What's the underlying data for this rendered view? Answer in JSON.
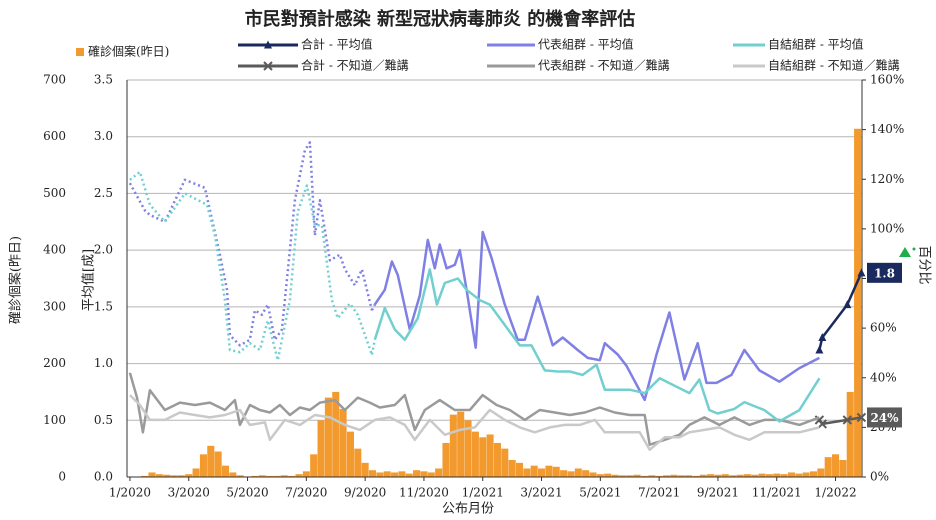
{
  "chart_data": {
    "type": "combo",
    "title": "市民對預計感染 新型冠狀病毒肺炎 的機會率評估",
    "x_label": "公布月份",
    "y_label": "平均值[成]",
    "y0_label": "確診個案(昨日)",
    "y2_label": "百分比",
    "xlim": [
      -0.1,
      24.9
    ],
    "xticks": [
      {
        "value": 0,
        "label": "1/2020"
      },
      {
        "value": 2,
        "label": "3/2020"
      },
      {
        "value": 4,
        "label": "5/2020"
      },
      {
        "value": 6,
        "label": "7/2020"
      },
      {
        "value": 8,
        "label": "9/2020"
      },
      {
        "value": 10,
        "label": "11/2020"
      },
      {
        "value": 12,
        "label": "1/2021"
      },
      {
        "value": 14,
        "label": "3/2021"
      },
      {
        "value": 16,
        "label": "5/2021"
      },
      {
        "value": 18,
        "label": "7/2021"
      },
      {
        "value": 20,
        "label": "9/2021"
      },
      {
        "value": 22,
        "label": "11/2021"
      },
      {
        "value": 24,
        "label": "1/2022"
      }
    ],
    "ylim": [
      0,
      3.5
    ],
    "yticks": [
      {
        "value": 0,
        "label": "0.0"
      },
      0.5,
      {
        "value": 1,
        "label": "1.0"
      },
      1.5,
      {
        "value": 2,
        "label": "2.0"
      },
      2.5,
      {
        "value": 3,
        "label": "3.0"
      },
      3.5
    ],
    "y0lim": [
      0,
      700
    ],
    "y0ticks": [
      0,
      100,
      200,
      300,
      400,
      500,
      600,
      700
    ],
    "y2lim": [
      0,
      160
    ],
    "y2ticks": [
      {
        "value": 0,
        "label": "0%"
      },
      {
        "value": 20,
        "label": "20%"
      },
      {
        "value": 40,
        "label": "40%"
      },
      {
        "value": 60,
        "label": "60%"
      },
      {
        "value": 80,
        "label": "80%"
      },
      {
        "value": 100,
        "label": "100%"
      },
      {
        "value": 120,
        "label": "120%"
      },
      {
        "value": 140,
        "label": "140%"
      },
      {
        "value": 160,
        "label": "160%"
      }
    ],
    "grid": true,
    "series": [
      {
        "name": "確診個案(昨日)",
        "type": "bar",
        "axis": "y0",
        "color": "#f39a2f",
        "x": [
          0,
          0.25,
          0.5,
          0.75,
          1,
          1.25,
          1.5,
          1.75,
          2,
          2.25,
          2.5,
          2.75,
          3,
          3.25,
          3.5,
          3.75,
          4,
          4.25,
          4.5,
          4.75,
          5,
          5.25,
          5.5,
          5.75,
          6,
          6.25,
          6.5,
          6.75,
          7,
          7.25,
          7.5,
          7.75,
          8,
          8.25,
          8.5,
          8.75,
          9,
          9.25,
          9.5,
          9.75,
          10,
          10.25,
          10.5,
          10.75,
          11,
          11.25,
          11.5,
          11.75,
          12,
          12.25,
          12.5,
          12.75,
          13,
          13.25,
          13.5,
          13.75,
          14,
          14.25,
          14.5,
          14.75,
          15,
          15.25,
          15.5,
          15.75,
          16,
          16.25,
          16.5,
          16.75,
          17,
          17.25,
          17.5,
          17.75,
          18,
          18.25,
          18.5,
          18.75,
          19,
          19.25,
          19.5,
          19.75,
          20,
          20.25,
          20.5,
          20.75,
          21,
          21.25,
          21.5,
          21.75,
          22,
          22.25,
          22.5,
          22.75,
          23,
          23.25,
          23.5,
          23.75,
          24,
          24.25,
          24.5,
          24.75
        ],
        "values": [
          0,
          0,
          2,
          8,
          5,
          4,
          3,
          3,
          5,
          15,
          40,
          55,
          45,
          20,
          8,
          3,
          1,
          2,
          3,
          2,
          2,
          3,
          2,
          5,
          10,
          40,
          100,
          140,
          150,
          120,
          80,
          50,
          25,
          12,
          8,
          10,
          8,
          10,
          6,
          12,
          10,
          8,
          15,
          60,
          110,
          115,
          100,
          80,
          70,
          75,
          60,
          50,
          30,
          25,
          15,
          20,
          15,
          20,
          18,
          12,
          10,
          15,
          12,
          8,
          5,
          6,
          4,
          3,
          3,
          4,
          2,
          3,
          2,
          3,
          4,
          3,
          3,
          2,
          4,
          5,
          4,
          5,
          3,
          4,
          5,
          4,
          6,
          5,
          6,
          5,
          8,
          6,
          8,
          10,
          15,
          35,
          40,
          30,
          150,
          614
        ]
      },
      {
        "name": "合計 - 平均值",
        "type": "line",
        "axis": "y",
        "color": "#1b2a5e",
        "marker": "triangle",
        "x": [
          23.45,
          23.55,
          24.4,
          24.88
        ],
        "values": [
          1.12,
          1.23,
          1.52,
          1.8
        ],
        "value_labels": [
          null,
          null,
          null,
          "1.8"
        ]
      },
      {
        "name": "代表組群 - 平均值",
        "type": "line",
        "axis": "y",
        "color": "#7f7fe6",
        "dashed_before": 8.3,
        "x": [
          0,
          0.51,
          0.68,
          1.19,
          1.87,
          2.55,
          3.06,
          3.3,
          3.4,
          3.74,
          4.08,
          4.25,
          4.49,
          4.69,
          4.93,
          5.17,
          5.61,
          5.95,
          6.12,
          6.29,
          6.46,
          6.8,
          7.14,
          7.31,
          7.65,
          7.89,
          8.23,
          8.33,
          8.67,
          8.91,
          9.11,
          9.52,
          9.86,
          10.13,
          10.37,
          10.54,
          10.77,
          11.05,
          11.22,
          11.45,
          11.76,
          12,
          12.3,
          12.75,
          13.19,
          13.43,
          13.87,
          14.38,
          14.72,
          15.23,
          15.57,
          15.98,
          16.15,
          16.59,
          16.89,
          17.51,
          17.91,
          18.35,
          18.86,
          19.31,
          19.61,
          19.95,
          20.46,
          20.9,
          21.41,
          22.09,
          22.77,
          23.45
        ],
        "values": [
          2.59,
          2.35,
          2.31,
          2.25,
          2.62,
          2.55,
          1.96,
          1.65,
          1.25,
          1.16,
          1.21,
          1.47,
          1.43,
          1.52,
          1.21,
          1.3,
          2.44,
          2.88,
          2.95,
          2.13,
          2.44,
          1.91,
          1.96,
          1.83,
          1.69,
          1.83,
          1.47,
          1.52,
          1.65,
          1.9,
          1.78,
          1.3,
          1.6,
          2.09,
          1.84,
          2.05,
          1.84,
          1.87,
          2,
          1.65,
          1.14,
          2.16,
          1.93,
          1.52,
          1.21,
          1.21,
          1.59,
          1.16,
          1.23,
          1.12,
          1.05,
          1.03,
          1.18,
          1.08,
          0.98,
          0.68,
          1.08,
          1.45,
          0.86,
          1.18,
          0.83,
          0.83,
          0.9,
          1.12,
          0.94,
          0.84,
          0.96,
          1.05
        ]
      },
      {
        "name": "自結組群 - 平均值",
        "type": "line",
        "axis": "y",
        "color": "#72cfcf",
        "dashed_before": 8.3,
        "x": [
          0,
          0.34,
          0.68,
          1.19,
          1.87,
          2.62,
          2.89,
          3.23,
          3.4,
          3.74,
          4.08,
          4.42,
          4.69,
          5.03,
          5.44,
          5.71,
          6.02,
          6.29,
          6.53,
          6.87,
          7.07,
          7.48,
          7.75,
          8.23,
          8.33,
          8.67,
          9.01,
          9.35,
          9.79,
          10.2,
          10.44,
          10.71,
          11.15,
          11.45,
          11.9,
          12.24,
          12.75,
          13.26,
          13.66,
          14.11,
          14.55,
          14.96,
          15.4,
          15.87,
          16.15,
          17,
          17.51,
          18.02,
          19.03,
          19.37,
          19.71,
          19.99,
          20.56,
          20.9,
          21.58,
          22.09,
          22.77,
          23.45
        ],
        "values": [
          2.62,
          2.69,
          2.4,
          2.25,
          2.5,
          2.4,
          2.13,
          1.56,
          1.12,
          1.1,
          1.18,
          1.12,
          1.38,
          1.03,
          1.56,
          2.34,
          2.57,
          2.22,
          2.22,
          1.56,
          1.4,
          1.53,
          1.43,
          1.08,
          1.21,
          1.49,
          1.3,
          1.21,
          1.4,
          1.83,
          1.52,
          1.71,
          1.75,
          1.65,
          1.56,
          1.52,
          1.34,
          1.16,
          1.16,
          0.94,
          0.93,
          0.93,
          0.9,
          0.99,
          0.77,
          0.77,
          0.74,
          0.87,
          0.74,
          0.86,
          0.59,
          0.56,
          0.6,
          0.66,
          0.59,
          0.49,
          0.59,
          0.87
        ]
      },
      {
        "name": "合計 - 不知道／難講",
        "type": "line",
        "axis": "y2",
        "color": "#5a5a5a",
        "marker": "x",
        "x": [
          23.45,
          23.55,
          24.4,
          24.88
        ],
        "values": [
          23,
          21.4,
          23,
          24
        ],
        "value_labels": [
          null,
          null,
          null,
          "24%"
        ]
      },
      {
        "name": "代表組群 - 不知道／難講",
        "type": "line",
        "axis": "y2",
        "color": "#9a9a9a",
        "x": [
          0,
          0.24,
          0.44,
          0.68,
          1.19,
          1.7,
          2.21,
          2.72,
          3.23,
          3.57,
          3.74,
          4.08,
          4.42,
          4.76,
          5.1,
          5.44,
          5.78,
          6.12,
          6.46,
          6.97,
          7.31,
          7.75,
          8.16,
          8.5,
          9.01,
          9.35,
          9.69,
          10.03,
          10.54,
          11.05,
          11.56,
          12,
          12.47,
          12.92,
          13.43,
          13.94,
          14.45,
          14.96,
          15.47,
          15.98,
          16.49,
          17,
          17.51,
          17.68,
          18.19,
          18.69,
          19.03,
          19.54,
          20.05,
          20.56,
          21.07,
          21.58,
          22.09,
          22.77,
          23.45
        ],
        "values": [
          42,
          32,
          18,
          35,
          27,
          30,
          29,
          30,
          27,
          31,
          21,
          29,
          27,
          26,
          29,
          25,
          28,
          27,
          30,
          31,
          27,
          32,
          30,
          28,
          29,
          33,
          19,
          27,
          31,
          27,
          27,
          33,
          29,
          27,
          23,
          27,
          26,
          25,
          26,
          28,
          26,
          25,
          25,
          13,
          15,
          17,
          21,
          24,
          21,
          24,
          21,
          23,
          23,
          21,
          24
        ]
      },
      {
        "name": "自結組群 - 不知道／難講",
        "type": "line",
        "axis": "y2",
        "color": "#c9c9c9",
        "x": [
          0,
          0.34,
          0.68,
          1.19,
          1.7,
          2.21,
          2.72,
          3.23,
          3.74,
          4.08,
          4.59,
          4.76,
          5.27,
          5.78,
          6.29,
          6.8,
          7.31,
          7.82,
          8.33,
          8.84,
          9.35,
          9.69,
          10.2,
          10.71,
          11.22,
          11.73,
          12.24,
          12.75,
          13.26,
          13.77,
          14.28,
          14.79,
          15.3,
          15.81,
          16.15,
          16.66,
          17.34,
          17.68,
          18.19,
          18.69,
          19.03,
          19.54,
          20.05,
          20.56,
          21.07,
          21.58,
          22.09,
          22.77,
          23.45
        ],
        "values": [
          33,
          29,
          23,
          23,
          26,
          25,
          24,
          25,
          27,
          21,
          22,
          15,
          23,
          21,
          25,
          24,
          21,
          19,
          23,
          24,
          21,
          15,
          23,
          17,
          19,
          20,
          27,
          23,
          20,
          18,
          20,
          21,
          21,
          23,
          18,
          18,
          18,
          11,
          16,
          16,
          18,
          19,
          20,
          17,
          15,
          18,
          18,
          18,
          20
        ]
      }
    ]
  }
}
